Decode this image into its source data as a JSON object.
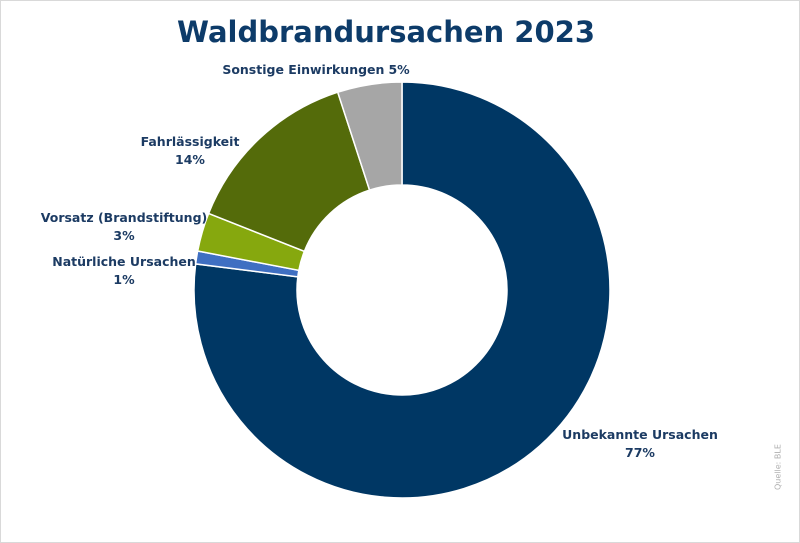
{
  "chart_data": {
    "type": "donut",
    "title": "Waldbrandursachen 2023",
    "categories": [
      "Unbekannte Ursachen",
      "Natürliche Ursachen",
      "Vorsatz (Brandstiftung)",
      "Fahrlässigkeit",
      "Sonstige Einwirkungen"
    ],
    "values": [
      77,
      1,
      3,
      14,
      5
    ],
    "value_labels": [
      "77%",
      "1%",
      "3%",
      "14%",
      "5%"
    ],
    "colors": [
      "#003764",
      "#3f6fc2",
      "#86a80e",
      "#546b0a",
      "#a6a6a6"
    ],
    "source": "Quelle: BLE"
  }
}
